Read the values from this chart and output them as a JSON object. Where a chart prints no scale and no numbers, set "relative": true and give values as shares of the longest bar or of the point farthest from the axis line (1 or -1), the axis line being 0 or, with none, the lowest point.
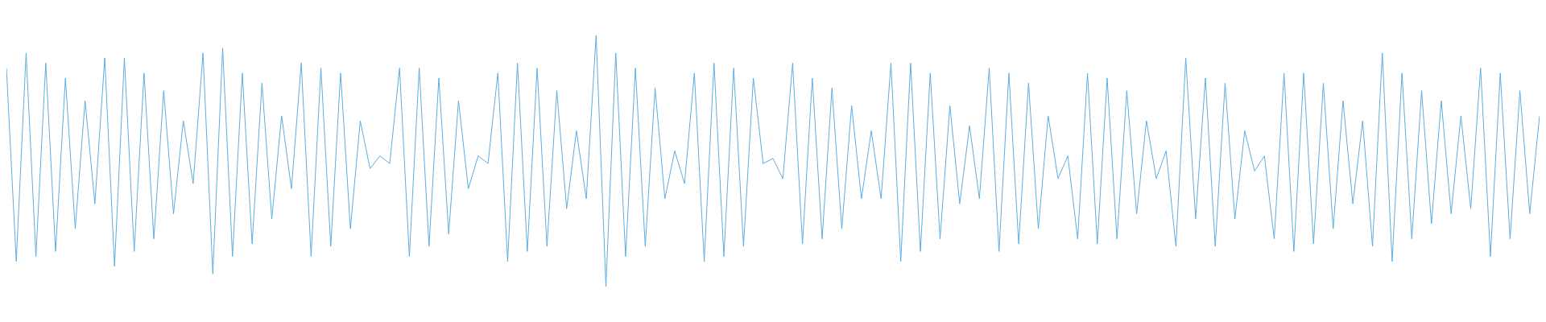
{
  "chart_data": {
    "type": "line",
    "relative": true,
    "categories": [
      null,
      null,
      null,
      null,
      null,
      null,
      null,
      null,
      null,
      null,
      null,
      null,
      null,
      null,
      null,
      null,
      null,
      null,
      null,
      null,
      null,
      null,
      null,
      null,
      null,
      null,
      null,
      null,
      null,
      null,
      null,
      null,
      null,
      null,
      null,
      null,
      null,
      null,
      null,
      null,
      null,
      null,
      null,
      null,
      null,
      null,
      null,
      null,
      null,
      null,
      null,
      null,
      null,
      null,
      null,
      null,
      null,
      null,
      null,
      null,
      null,
      null,
      null,
      null,
      null,
      null,
      null,
      null,
      null,
      null,
      null,
      null,
      null,
      null,
      null,
      null,
      null,
      null,
      null,
      null,
      null,
      null,
      null,
      null,
      null,
      null,
      null,
      null,
      null,
      null,
      null,
      null,
      null,
      null,
      null,
      null,
      null,
      null,
      null,
      null,
      null,
      null,
      null,
      null,
      null,
      null,
      null,
      null,
      null,
      null,
      null,
      null,
      null,
      null,
      null,
      null,
      null,
      null,
      null,
      null,
      null,
      null,
      null,
      null,
      null,
      null,
      null,
      null,
      null,
      null,
      null,
      null,
      null,
      null,
      null,
      null,
      null,
      null,
      null,
      null,
      null,
      null,
      null,
      null,
      null,
      null,
      null,
      null,
      null,
      null,
      null,
      null,
      null,
      null,
      null,
      null,
      null
    ],
    "series": [
      {
        "color": "#5dade2",
        "values": [
          0.87,
          0.1,
          0.93,
          0.12,
          0.89,
          0.14,
          0.83,
          0.23,
          0.74,
          0.33,
          0.91,
          0.08,
          0.91,
          0.14,
          0.85,
          0.19,
          0.78,
          0.29,
          0.66,
          0.41,
          0.93,
          0.05,
          0.95,
          0.12,
          0.85,
          0.17,
          0.81,
          0.27,
          0.68,
          0.39,
          0.89,
          0.12,
          0.87,
          0.16,
          0.85,
          0.23,
          0.66,
          0.47,
          0.52,
          0.49,
          0.87,
          0.12,
          0.87,
          0.16,
          0.83,
          0.21,
          0.74,
          0.39,
          0.52,
          0.49,
          0.85,
          0.1,
          0.89,
          0.14,
          0.87,
          0.16,
          0.78,
          0.31,
          0.62,
          0.35,
          1,
          0,
          0.93,
          0.12,
          0.87,
          0.16,
          0.79,
          0.35,
          0.54,
          0.41,
          0.85,
          0.1,
          0.89,
          0.12,
          0.87,
          0.16,
          0.83,
          0.49,
          0.51,
          0.43,
          0.89,
          0.17,
          0.83,
          0.19,
          0.79,
          0.23,
          0.72,
          0.35,
          0.62,
          0.35,
          0.89,
          0.1,
          0.89,
          0.14,
          0.85,
          0.19,
          0.72,
          0.33,
          0.64,
          0.35,
          0.87,
          0.14,
          0.85,
          0.17,
          0.81,
          0.23,
          0.68,
          0.43,
          0.52,
          0.19,
          0.85,
          0.17,
          0.83,
          0.19,
          0.78,
          0.29,
          0.66,
          0.43,
          0.54,
          0.16,
          0.91,
          0.27,
          0.83,
          0.16,
          0.81,
          0.27,
          0.62,
          0.46,
          0.52,
          0.19,
          0.85,
          0.14,
          0.85,
          0.17,
          0.81,
          0.23,
          0.74,
          0.33,
          0.66,
          0.16,
          0.93,
          0.1,
          0.85,
          0.19,
          0.78,
          0.25,
          0.74,
          0.29,
          0.68,
          0.31,
          0.87,
          0.12,
          0.85,
          0.19,
          0.78,
          0.29,
          0.68
        ]
      }
    ]
  }
}
